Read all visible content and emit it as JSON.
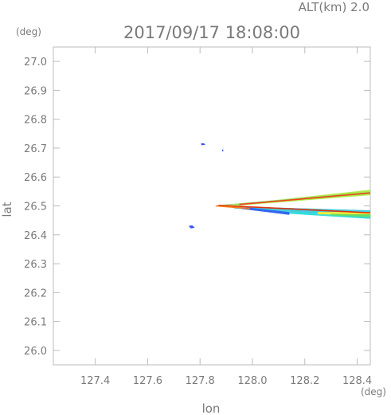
{
  "header": {
    "altitude_label": "ALT(km)  2.0",
    "timestamp": "2017/09/17 18:08:00"
  },
  "chart_data": {
    "type": "scatter",
    "title": "2017/09/17 18:08:00",
    "subtitle": "ALT(km)  2.0",
    "xlabel": "lon",
    "ylabel": "lat",
    "x_unit": "(deg)",
    "y_unit": "(deg)",
    "xlim": [
      127.24,
      128.45
    ],
    "ylim": [
      25.95,
      27.05
    ],
    "x_ticks": [
      127.4,
      127.6,
      127.8,
      128.0,
      128.2,
      128.4
    ],
    "x_tick_labels": [
      "127.4",
      "127.6",
      "127.8",
      "128.0",
      "128.2",
      "128.4"
    ],
    "y_ticks": [
      26.0,
      26.1,
      26.2,
      26.3,
      26.4,
      26.5,
      26.6,
      26.7,
      26.8,
      26.9,
      27.0
    ],
    "y_tick_labels": [
      "26.0",
      "26.1",
      "26.2",
      "26.3",
      "26.4",
      "26.5",
      "26.6",
      "26.7",
      "26.8",
      "26.9",
      "27.0"
    ],
    "grid": false,
    "echo_regions": [
      {
        "kind": "blob",
        "color": "#3355ee",
        "points": [
          [
            127.805,
            26.716
          ],
          [
            127.815,
            26.716
          ],
          [
            127.818,
            26.712
          ],
          [
            127.806,
            26.711
          ]
        ]
      },
      {
        "kind": "blob",
        "color": "#3355ee",
        "points": [
          [
            127.885,
            26.694
          ],
          [
            127.888,
            26.694
          ],
          [
            127.888,
            26.69
          ],
          [
            127.885,
            26.69
          ]
        ]
      },
      {
        "kind": "blob",
        "color": "#3355ee",
        "points": [
          [
            127.758,
            26.43
          ],
          [
            127.77,
            26.432
          ],
          [
            127.778,
            26.425
          ],
          [
            127.765,
            26.423
          ]
        ]
      },
      {
        "kind": "band",
        "color": "#aaee44",
        "points": [
          [
            127.92,
            26.5
          ],
          [
            128.45,
            26.538
          ],
          [
            128.45,
            26.555
          ],
          [
            127.95,
            26.506
          ]
        ]
      },
      {
        "kind": "band",
        "color": "#99dd66",
        "points": [
          [
            127.87,
            26.5
          ],
          [
            128.45,
            26.544
          ],
          [
            128.45,
            26.548
          ],
          [
            127.87,
            26.502
          ]
        ]
      },
      {
        "kind": "band",
        "color": "#44ccdd",
        "points": [
          [
            127.93,
            26.492
          ],
          [
            128.45,
            26.462
          ],
          [
            128.45,
            26.484
          ],
          [
            127.96,
            26.497
          ]
        ]
      },
      {
        "kind": "band",
        "color": "#33dddd",
        "points": [
          [
            128.1,
            26.476
          ],
          [
            128.45,
            26.456
          ],
          [
            128.45,
            26.466
          ],
          [
            128.1,
            26.481
          ]
        ]
      },
      {
        "kind": "band",
        "color": "#ffee33",
        "points": [
          [
            128.25,
            26.472
          ],
          [
            128.45,
            26.468
          ],
          [
            128.45,
            26.478
          ],
          [
            128.25,
            26.478
          ]
        ]
      },
      {
        "kind": "band",
        "color": "#66dd66",
        "points": [
          [
            128.3,
            26.468
          ],
          [
            128.45,
            26.462
          ],
          [
            128.45,
            26.47
          ],
          [
            128.3,
            26.472
          ]
        ]
      },
      {
        "kind": "band",
        "color": "#3366ee",
        "points": [
          [
            127.96,
            26.49
          ],
          [
            128.14,
            26.47
          ],
          [
            128.14,
            26.478
          ],
          [
            127.98,
            26.494
          ]
        ]
      },
      {
        "kind": "line",
        "color": "#dd3311",
        "points": [
          [
            127.87,
            26.502
          ],
          [
            128.45,
            26.476
          ]
        ]
      },
      {
        "kind": "line",
        "color": "#ff7711",
        "points": [
          [
            127.86,
            26.5
          ],
          [
            127.99,
            26.491
          ]
        ]
      },
      {
        "kind": "line",
        "color": "#ee4422",
        "points": [
          [
            127.95,
            26.505
          ],
          [
            128.45,
            26.545
          ]
        ]
      }
    ]
  }
}
